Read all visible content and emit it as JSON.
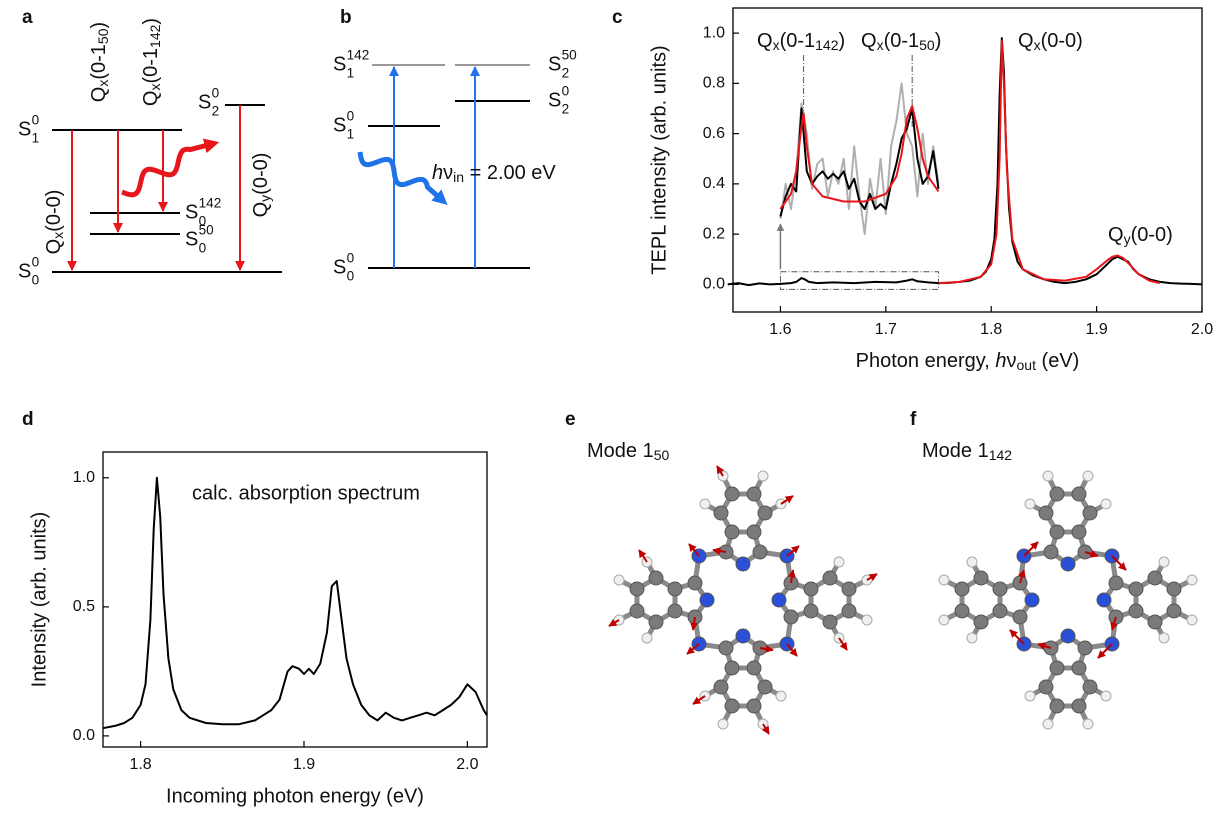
{
  "panels": [
    "a",
    "b",
    "c",
    "d",
    "e",
    "f"
  ],
  "diagram_a": {
    "levels": [
      {
        "base": "S",
        "sup": "0",
        "sub": "1"
      },
      {
        "base": "S",
        "sup": "0",
        "sub": "2"
      },
      {
        "base": "S",
        "sup": "142",
        "sub": "0"
      },
      {
        "base": "S",
        "sup": "50",
        "sub": "0"
      },
      {
        "base": "S",
        "sup": "0",
        "sub": "0"
      }
    ],
    "transitions": [
      [
        {
          "t": "Q"
        },
        {
          "t": "x",
          "s": "sub"
        },
        {
          "t": "(0-0)"
        }
      ],
      [
        {
          "t": "Q"
        },
        {
          "t": "x",
          "s": "sub"
        },
        {
          "t": "(0-1"
        },
        {
          "t": "50",
          "s": "sub"
        },
        {
          "t": ")"
        }
      ],
      [
        {
          "t": "Q"
        },
        {
          "t": "x",
          "s": "sub"
        },
        {
          "t": "(0-1"
        },
        {
          "t": "142",
          "s": "sub"
        },
        {
          "t": ")"
        }
      ],
      [
        {
          "t": "Q"
        },
        {
          "t": "y",
          "s": "sub"
        },
        {
          "t": "(0-0)"
        }
      ]
    ]
  },
  "diagram_b": {
    "levels": [
      {
        "base": "S",
        "sup": "142",
        "sub": "1"
      },
      {
        "base": "S",
        "sup": "50",
        "sub": "2"
      },
      {
        "base": "S",
        "sup": "0",
        "sub": "1"
      },
      {
        "base": "S",
        "sup": "0",
        "sub": "2"
      },
      {
        "base": "S",
        "sup": "0",
        "sub": "0"
      }
    ],
    "excitation": [
      {
        "t": "h",
        "i": true
      },
      {
        "t": "ν"
      },
      {
        "t": "in",
        "s": "sub"
      },
      {
        "t": " = 2.00 eV"
      }
    ]
  },
  "modes": [
    [
      {
        "t": "Mode 1"
      },
      {
        "t": "50",
        "s": "sub"
      }
    ],
    [
      {
        "t": "Mode 1"
      },
      {
        "t": "142",
        "s": "sub"
      }
    ]
  ],
  "chart_data": [
    {
      "type": "line",
      "xlabel": [
        {
          "t": "Photon energy, "
        },
        {
          "t": "h",
          "i": true
        },
        {
          "t": "ν"
        },
        {
          "t": "out",
          "s": "sub"
        },
        {
          "t": " (eV)"
        }
      ],
      "ylabel": "TEPL intensity (arb. units)",
      "xlim": [
        1.555,
        2.0
      ],
      "ylim": [
        -0.11,
        1.1
      ],
      "xticks": [
        1.6,
        1.7,
        1.8,
        1.9,
        {
          "value": 2,
          "label": "2.0"
        }
      ],
      "yticks": [
        {
          "value": 0,
          "label": "0.0"
        },
        0.2,
        0.4,
        0.6,
        0.8,
        {
          "value": 1,
          "label": "1.0"
        }
      ],
      "annotations": [
        [
          {
            "t": "Q"
          },
          {
            "t": "x",
            "s": "sub"
          },
          {
            "t": "(0-1"
          },
          {
            "t": "142",
            "s": "sub"
          },
          {
            "t": ")"
          }
        ],
        [
          {
            "t": "Q"
          },
          {
            "t": "x",
            "s": "sub"
          },
          {
            "t": "(0-1"
          },
          {
            "t": "50",
            "s": "sub"
          },
          {
            "t": ")"
          }
        ],
        [
          {
            "t": "Q"
          },
          {
            "t": "x",
            "s": "sub"
          },
          {
            "t": "(0-0)"
          }
        ],
        [
          {
            "t": "Q"
          },
          {
            "t": "y",
            "s": "sub"
          },
          {
            "t": "(0-0)"
          }
        ]
      ],
      "series": [
        {
          "color": "#b0b0b0",
          "x": [
            1.6,
            1.605,
            1.61,
            1.615,
            1.62,
            1.625,
            1.63,
            1.635,
            1.64,
            1.645,
            1.65,
            1.655,
            1.66,
            1.665,
            1.67,
            1.675,
            1.68,
            1.685,
            1.69,
            1.695,
            1.7,
            1.705,
            1.71,
            1.715,
            1.72,
            1.725,
            1.73,
            1.735,
            1.74,
            1.745,
            1.75
          ],
          "values": [
            0.26,
            0.4,
            0.3,
            0.45,
            0.72,
            0.6,
            0.38,
            0.48,
            0.5,
            0.35,
            0.45,
            0.4,
            0.5,
            0.3,
            0.55,
            0.35,
            0.2,
            0.42,
            0.3,
            0.5,
            0.28,
            0.55,
            0.65,
            0.8,
            0.6,
            0.55,
            0.35,
            0.6,
            0.4,
            0.55,
            0.4
          ]
        },
        {
          "color": "#000000",
          "x": [
            1.6,
            1.605,
            1.61,
            1.615,
            1.62,
            1.625,
            1.63,
            1.635,
            1.64,
            1.645,
            1.65,
            1.655,
            1.66,
            1.665,
            1.67,
            1.675,
            1.68,
            1.685,
            1.69,
            1.695,
            1.7,
            1.705,
            1.71,
            1.715,
            1.72,
            1.725,
            1.73,
            1.735,
            1.74,
            1.745,
            1.75
          ],
          "values": [
            0.27,
            0.35,
            0.4,
            0.37,
            0.7,
            0.45,
            0.4,
            0.43,
            0.45,
            0.42,
            0.44,
            0.42,
            0.45,
            0.38,
            0.42,
            0.33,
            0.3,
            0.36,
            0.3,
            0.32,
            0.3,
            0.4,
            0.48,
            0.58,
            0.62,
            0.7,
            0.5,
            0.4,
            0.43,
            0.53,
            0.38
          ]
        },
        {
          "color": "#e8161b",
          "x": [
            1.6,
            1.61,
            1.615,
            1.62,
            1.622,
            1.625,
            1.63,
            1.64,
            1.66,
            1.68,
            1.7,
            1.71,
            1.715,
            1.72,
            1.725,
            1.73,
            1.735,
            1.74,
            1.75
          ],
          "values": [
            0.3,
            0.36,
            0.45,
            0.63,
            0.68,
            0.55,
            0.4,
            0.35,
            0.33,
            0.33,
            0.36,
            0.43,
            0.52,
            0.66,
            0.71,
            0.62,
            0.5,
            0.43,
            0.37
          ]
        },
        {
          "color": "#000000",
          "x": [
            1.55,
            1.56,
            1.57,
            1.58,
            1.59,
            1.6,
            1.61,
            1.615,
            1.62,
            1.623,
            1.627,
            1.635,
            1.65,
            1.67,
            1.69,
            1.71,
            1.72,
            1.725,
            1.73,
            1.74,
            1.75,
            1.76,
            1.77,
            1.78,
            1.79,
            1.795,
            1.8,
            1.803,
            1.806,
            1.808,
            1.81,
            1.812,
            1.814,
            1.817,
            1.82,
            1.825,
            1.83,
            1.84,
            1.85,
            1.86,
            1.87,
            1.88,
            1.89,
            1.9,
            1.905,
            1.91,
            1.915,
            1.92,
            1.925,
            1.93,
            1.935,
            1.94,
            1.95,
            1.96,
            1.97,
            1.98,
            1.99,
            2.0
          ],
          "values": [
            0.0,
            0.005,
            -0.003,
            0.004,
            0.0,
            0.002,
            0.005,
            0.01,
            0.025,
            0.02,
            0.01,
            0.005,
            0.008,
            0.005,
            0.01,
            0.008,
            0.015,
            0.02,
            0.012,
            0.008,
            0.005,
            0.006,
            0.01,
            0.015,
            0.03,
            0.05,
            0.1,
            0.18,
            0.4,
            0.75,
            0.98,
            0.85,
            0.55,
            0.3,
            0.17,
            0.09,
            0.06,
            0.035,
            0.02,
            0.01,
            0.005,
            0.01,
            0.02,
            0.04,
            0.06,
            0.08,
            0.1,
            0.11,
            0.1,
            0.09,
            0.06,
            0.04,
            0.02,
            0.01,
            0.005,
            0.003,
            0.002,
            0.0
          ]
        },
        {
          "color": "#e8161b",
          "x": [
            1.75,
            1.77,
            1.79,
            1.8,
            1.805,
            1.808,
            1.81,
            1.812,
            1.815,
            1.82,
            1.83,
            1.85,
            1.87,
            1.89,
            1.9,
            1.91,
            1.915,
            1.92,
            1.925,
            1.93,
            1.94,
            1.95,
            1.96
          ],
          "values": [
            0.005,
            0.01,
            0.03,
            0.08,
            0.2,
            0.5,
            0.97,
            0.8,
            0.45,
            0.18,
            0.06,
            0.02,
            0.015,
            0.03,
            0.06,
            0.095,
            0.11,
            0.115,
            0.105,
            0.085,
            0.04,
            0.015,
            0.005
          ]
        }
      ]
    },
    {
      "type": "line",
      "xlabel": "Incoming photon energy (eV)",
      "ylabel": "Intensity (arb. units)",
      "xlim": [
        1.777,
        2.012
      ],
      "ylim": [
        -0.043,
        1.1
      ],
      "xticks": [
        1.8,
        1.9,
        {
          "value": 2,
          "label": "2.0"
        }
      ],
      "yticks": [
        {
          "value": 0,
          "label": "0.0"
        },
        0.5,
        {
          "value": 1,
          "label": "1.0"
        }
      ],
      "annotations": [
        "calc. absorption spectrum"
      ],
      "series": [
        {
          "color": "#000000",
          "x": [
            1.777,
            1.785,
            1.79,
            1.795,
            1.8,
            1.803,
            1.806,
            1.808,
            1.81,
            1.812,
            1.814,
            1.817,
            1.82,
            1.825,
            1.83,
            1.84,
            1.85,
            1.86,
            1.87,
            1.875,
            1.88,
            1.885,
            1.89,
            1.893,
            1.897,
            1.9,
            1.903,
            1.906,
            1.91,
            1.914,
            1.917,
            1.92,
            1.923,
            1.926,
            1.93,
            1.935,
            1.94,
            1.945,
            1.95,
            1.955,
            1.96,
            1.965,
            1.97,
            1.975,
            1.98,
            1.985,
            1.99,
            1.995,
            2.0,
            2.005,
            2.01,
            2.012
          ],
          "values": [
            0.03,
            0.04,
            0.05,
            0.07,
            0.12,
            0.2,
            0.45,
            0.8,
            1.0,
            0.85,
            0.55,
            0.3,
            0.18,
            0.1,
            0.07,
            0.05,
            0.045,
            0.045,
            0.06,
            0.08,
            0.1,
            0.14,
            0.25,
            0.27,
            0.26,
            0.24,
            0.26,
            0.24,
            0.28,
            0.4,
            0.58,
            0.6,
            0.45,
            0.3,
            0.2,
            0.12,
            0.08,
            0.06,
            0.09,
            0.07,
            0.06,
            0.07,
            0.08,
            0.09,
            0.08,
            0.1,
            0.12,
            0.15,
            0.2,
            0.17,
            0.1,
            0.08
          ]
        }
      ]
    }
  ]
}
